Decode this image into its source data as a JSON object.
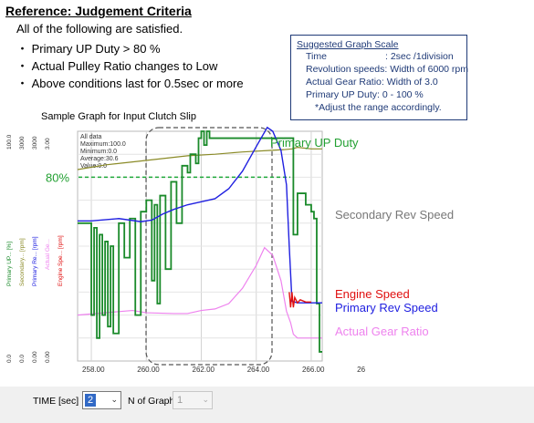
{
  "reference": {
    "title": "Reference: Judgement Criteria",
    "intro": "All of the following are satisfied.",
    "criteria": [
      "・ Primary UP Duty > 80 %",
      "・ Actual Pulley Ratio changes to Low",
      "・ Above conditions last for 0.5sec or more"
    ]
  },
  "scale_box": {
    "title": "Suggested Graph Scale",
    "time_label": "Time",
    "time_value": ": 2sec /1division",
    "rev_speed": "Revolution speeds: Width of 6000 rpm",
    "gear_ratio": "Actual Gear Ratio: Width of 3.0",
    "duty": "Primary UP Duty: 0 - 100 %",
    "note": "*Adjust the range accordingly."
  },
  "sample_caption": "Sample Graph for Input Clutch Slip",
  "stats": {
    "all_data": "All data",
    "maximum": "Maximum:100.0",
    "minimum": "Minimum:0.0",
    "average": "Average:30.6",
    "value": "Value:0.0"
  },
  "threshold_label": "80%",
  "axis_tops": [
    "100.0",
    "3000",
    "3000",
    "3.00"
  ],
  "axis_bottoms": [
    "0.0",
    "0.0",
    "0.00",
    "0.00"
  ],
  "axis_names": [
    "Primary UP... [%]",
    "Secondary... [rpm]",
    "Primary Re... [rpm]",
    "Actual Ge...",
    "Engine Spe... [rpm]"
  ],
  "annotations": {
    "primary_up_duty": "Primary UP Duty",
    "secondary_rev": "Secondary Rev Speed",
    "engine_speed": "Engine Speed",
    "primary_rev": "Primary Rev Speed",
    "actual_gear": "Actual Gear Ratio"
  },
  "colors": {
    "duty": "#1a8a2a",
    "secondary": "#8a8a26",
    "primary_rev": "#2020e0",
    "engine": "#e01010",
    "gear": "#ee82ee",
    "annot_gray": "#777777",
    "annot_green": "#22a032",
    "scale_box": "#1f3a77"
  },
  "controls": {
    "time_label": "TIME [sec]",
    "time_value": "2",
    "ngraph_label": "N of Graph",
    "ngraph_value": "1"
  },
  "chart_data": {
    "type": "line",
    "xlabel": "TIME [sec]",
    "xlim": [
      257.5,
      266.4
    ],
    "x_ticks": [
      "258.00",
      "260.00",
      "262.00",
      "264.00",
      "266.00",
      "26"
    ],
    "series": [
      {
        "name": "Primary UP Duty",
        "y_range": [
          0,
          100
        ],
        "x": [
          257.5,
          257.8,
          258.0,
          258.1,
          258.2,
          258.3,
          258.4,
          258.5,
          258.6,
          258.7,
          258.8,
          259.0,
          259.2,
          259.4,
          259.6,
          259.8,
          260.0,
          260.2,
          260.3,
          260.4,
          260.5,
          260.7,
          260.9,
          261.1,
          261.3,
          261.5,
          261.6,
          261.8,
          261.9,
          262.0,
          262.1,
          262.2,
          262.3,
          265.3,
          265.35,
          265.5,
          265.8,
          266.0,
          266.1,
          266.2,
          266.3,
          266.4
        ],
        "y": [
          60,
          60,
          20,
          58,
          10,
          55,
          20,
          52,
          15,
          50,
          12,
          60,
          45,
          62,
          20,
          65,
          70,
          35,
          68,
          25,
          72,
          40,
          78,
          60,
          85,
          82,
          90,
          86,
          97,
          100,
          94,
          100,
          97,
          97,
          55,
          73,
          68,
          65,
          62,
          25,
          4,
          4
        ]
      },
      {
        "name": "Secondary Rev Speed",
        "y_range": [
          0,
          3000
        ],
        "x": [
          257.5,
          258.5,
          259.5,
          260.5,
          261.5,
          262.5,
          263.5,
          264.5,
          265.0,
          265.3,
          265.5,
          266.0,
          266.4
        ],
        "y": [
          2500,
          2560,
          2600,
          2640,
          2680,
          2700,
          2730,
          2750,
          2760,
          2770,
          2790,
          2770,
          2770
        ]
      },
      {
        "name": "Primary Rev Speed",
        "y_range": [
          0,
          3000
        ],
        "x": [
          257.5,
          258.0,
          259.0,
          259.8,
          260.2,
          260.6,
          261.0,
          261.5,
          262.0,
          262.5,
          263.0,
          263.5,
          264.0,
          264.4,
          264.6,
          264.9,
          265.1,
          265.2,
          265.3,
          265.5,
          266.0,
          266.4
        ],
        "y": [
          1830,
          1830,
          1860,
          1820,
          1840,
          1920,
          1980,
          2040,
          2080,
          2120,
          2250,
          2480,
          2800,
          3050,
          3000,
          2750,
          2300,
          1500,
          780,
          760,
          760,
          760
        ]
      },
      {
        "name": "Engine Speed",
        "y_range": [
          0,
          3000
        ],
        "x": [
          265.2,
          265.25,
          265.3,
          265.35,
          265.4,
          265.5,
          265.6,
          265.8,
          266.0
        ],
        "y": [
          900,
          700,
          900,
          700,
          830,
          760,
          800,
          770,
          770
        ]
      },
      {
        "name": "Actual Gear Ratio",
        "y_range": [
          0,
          3.0
        ],
        "x": [
          257.5,
          259.5,
          260.0,
          261.0,
          261.5,
          262.0,
          262.5,
          263.0,
          263.5,
          264.0,
          264.3,
          264.6,
          264.9,
          265.1,
          265.25,
          265.35,
          265.5,
          266.4
        ],
        "y": [
          0.6,
          0.66,
          0.63,
          0.62,
          0.62,
          0.66,
          0.68,
          0.75,
          0.95,
          1.25,
          1.48,
          1.38,
          1.05,
          0.65,
          0.5,
          0.35,
          0.3,
          0.3
        ]
      }
    ],
    "threshold": {
      "value": 80,
      "label": "80%"
    },
    "grid": true
  }
}
